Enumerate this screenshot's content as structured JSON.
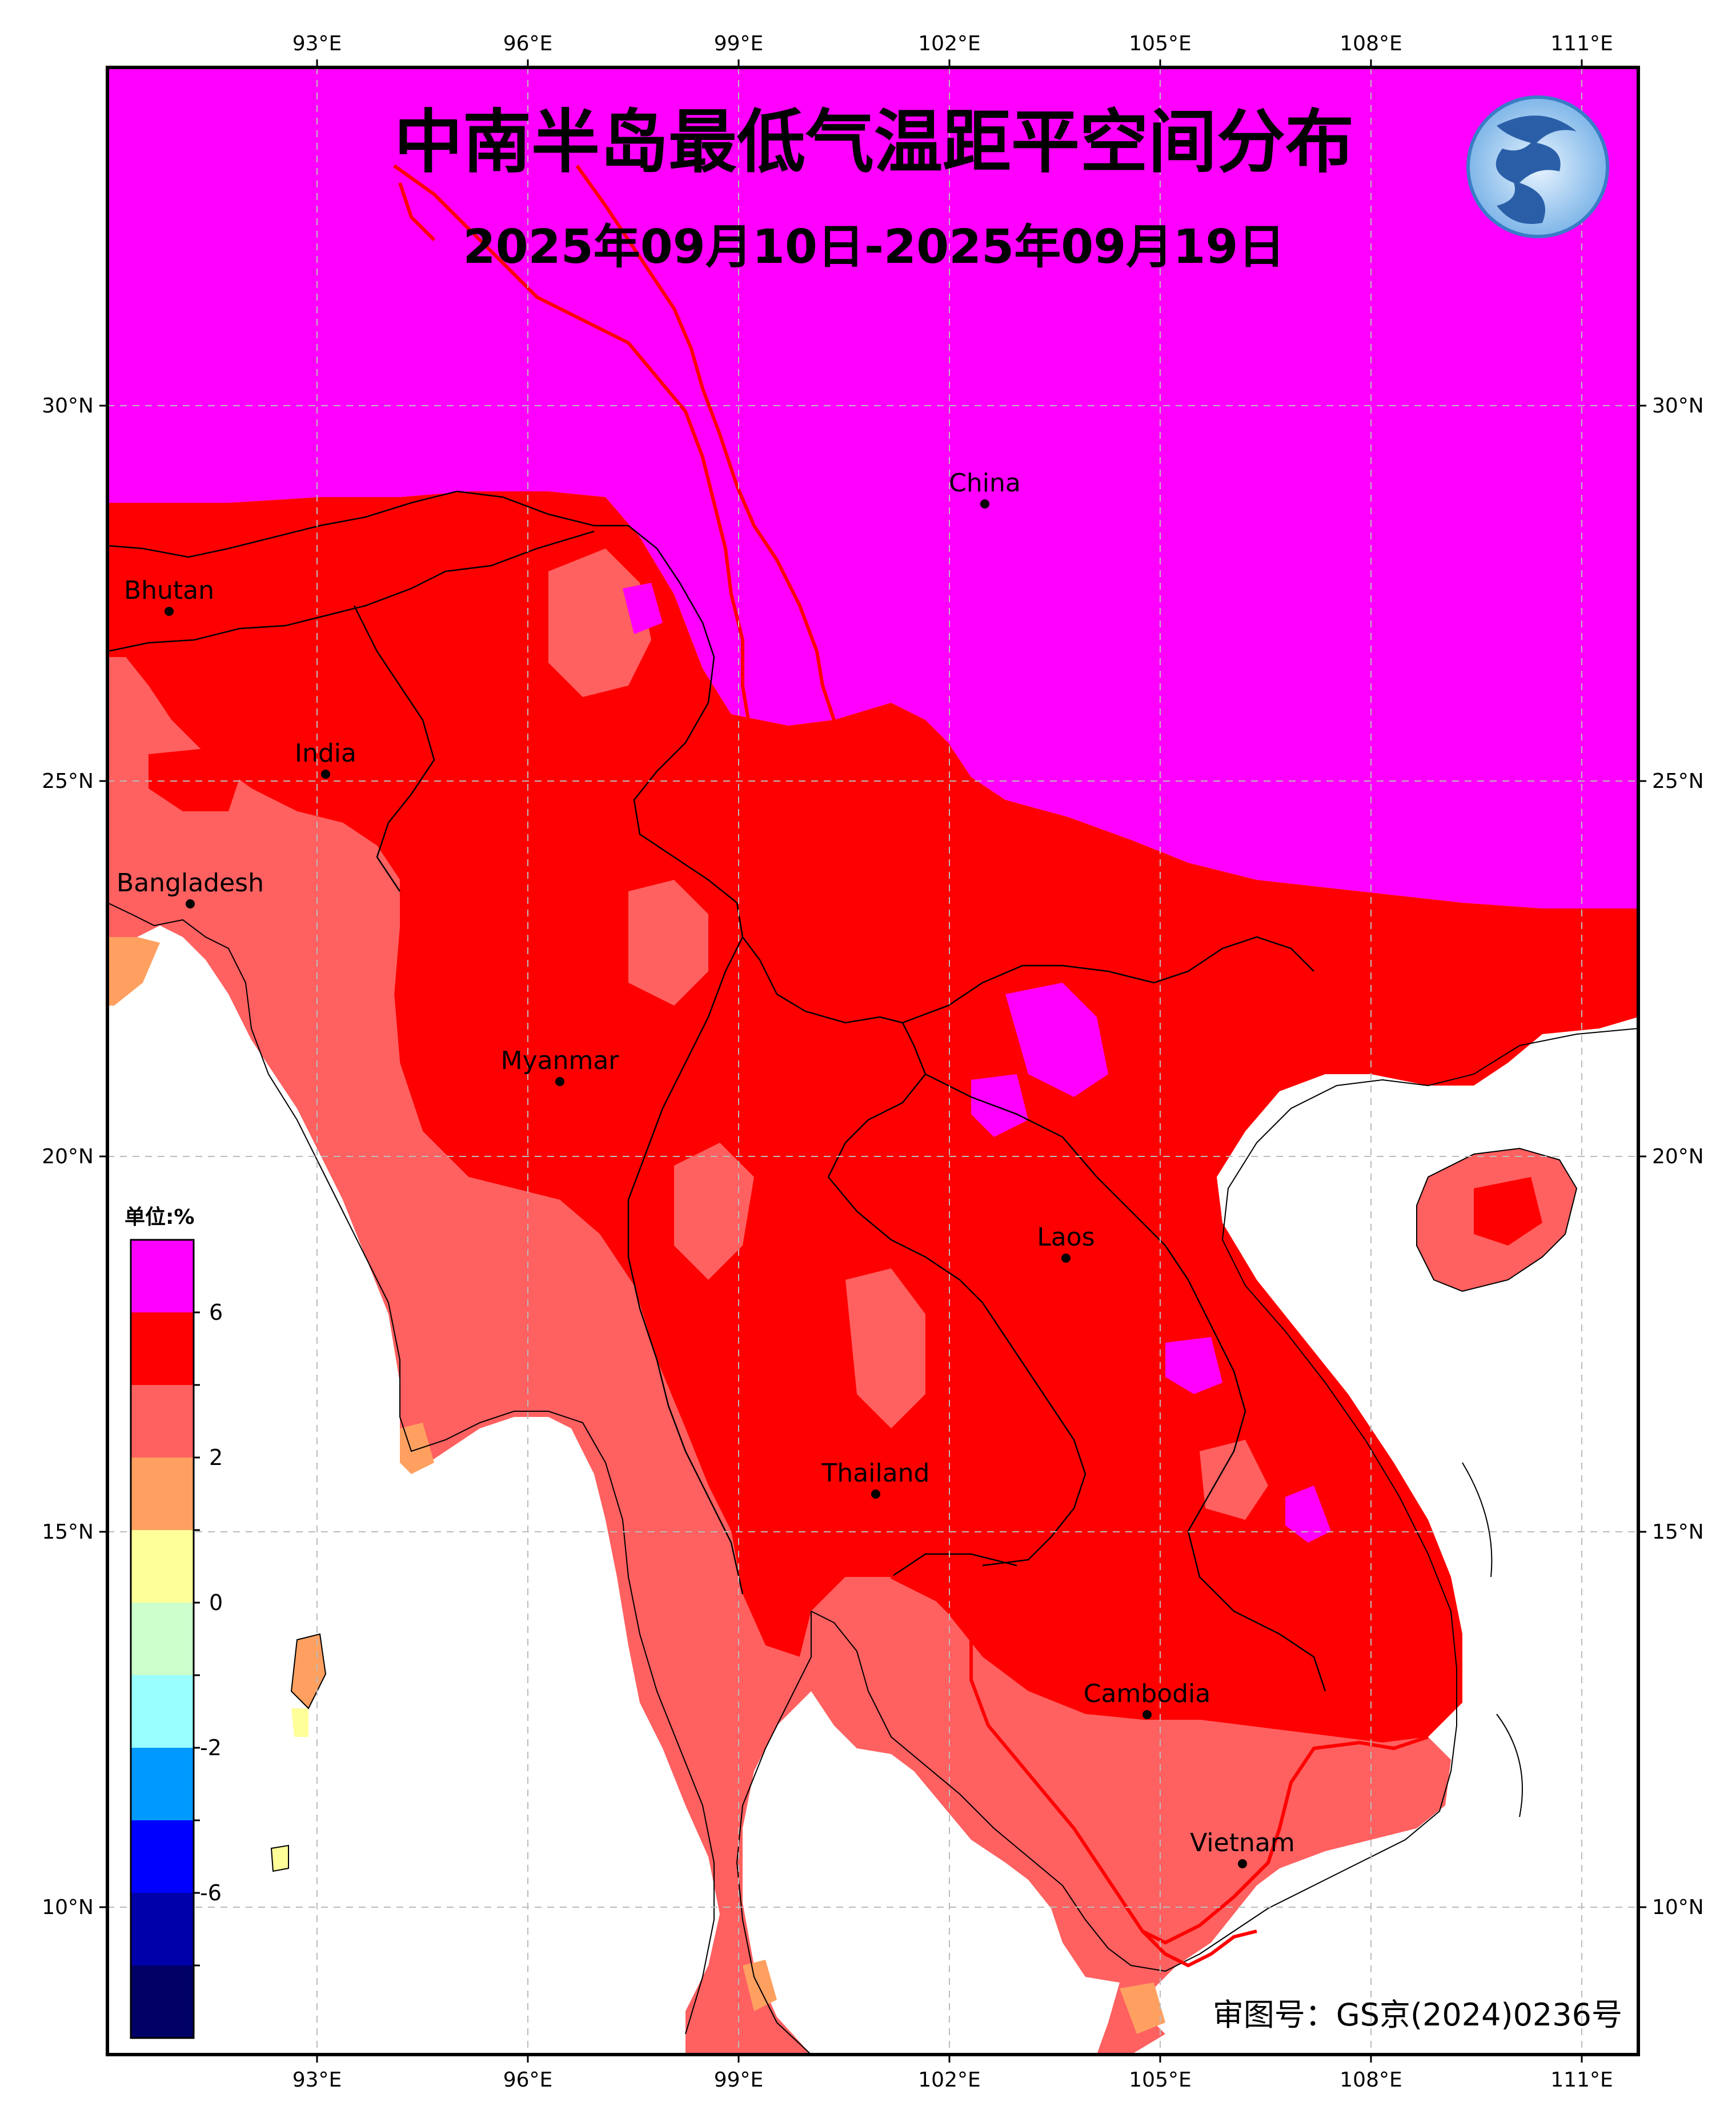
{
  "title": "中南半岛最低气温距平空间分布",
  "subtitle": "2025年09月10日-2025年09月19日",
  "longitude_ticks": [
    "93°E",
    "96°E",
    "99°E",
    "102°E",
    "105°E",
    "108°E",
    "111°E"
  ],
  "latitude_ticks": [
    "30°N",
    "25°N",
    "20°N",
    "15°N",
    "10°N"
  ],
  "countries": [
    {
      "name": "China",
      "lon": 102.6,
      "lat": 28.7
    },
    {
      "name": "Bhutan",
      "lon": 90.9,
      "lat": 27.3
    },
    {
      "name": "India",
      "lon": 93.1,
      "lat": 25.1
    },
    {
      "name": "Bangladesh",
      "lon": 91.1,
      "lat": 23.4
    },
    {
      "name": "Myanmar",
      "lon": 96.5,
      "lat": 21.0
    },
    {
      "name": "Laos",
      "lon": 103.8,
      "lat": 18.6
    },
    {
      "name": "Thailand",
      "lon": 101.0,
      "lat": 15.5
    },
    {
      "name": "Cambodia",
      "lon": 104.9,
      "lat": 12.6
    },
    {
      "name": "Vietnam",
      "lon": 106.3,
      "lat": 10.6
    }
  ],
  "colorbar": {
    "unit_label": "单位:%",
    "tick_labels": [
      "6",
      "2",
      "0",
      "-2",
      "-6"
    ],
    "colors": [
      "#ff00ff",
      "#ff0000",
      "#ff6060",
      "#ffa060",
      "#ffff99",
      "#ccffcc",
      "#99ffff",
      "#0099ff",
      "#0000ff",
      "#0000aa",
      "#000088",
      "#000066"
    ]
  },
  "credit": "审图号：GS京(2024)0236号",
  "colors": {
    "magenta": "#ff00ff",
    "red": "#ff0000",
    "salmon": "#ff6060",
    "orange": "#ffa060",
    "yellow": "#ffff99",
    "border_red": "#ff0000",
    "frame": "#000000"
  },
  "logo_icon": "cma-dragon-logo"
}
